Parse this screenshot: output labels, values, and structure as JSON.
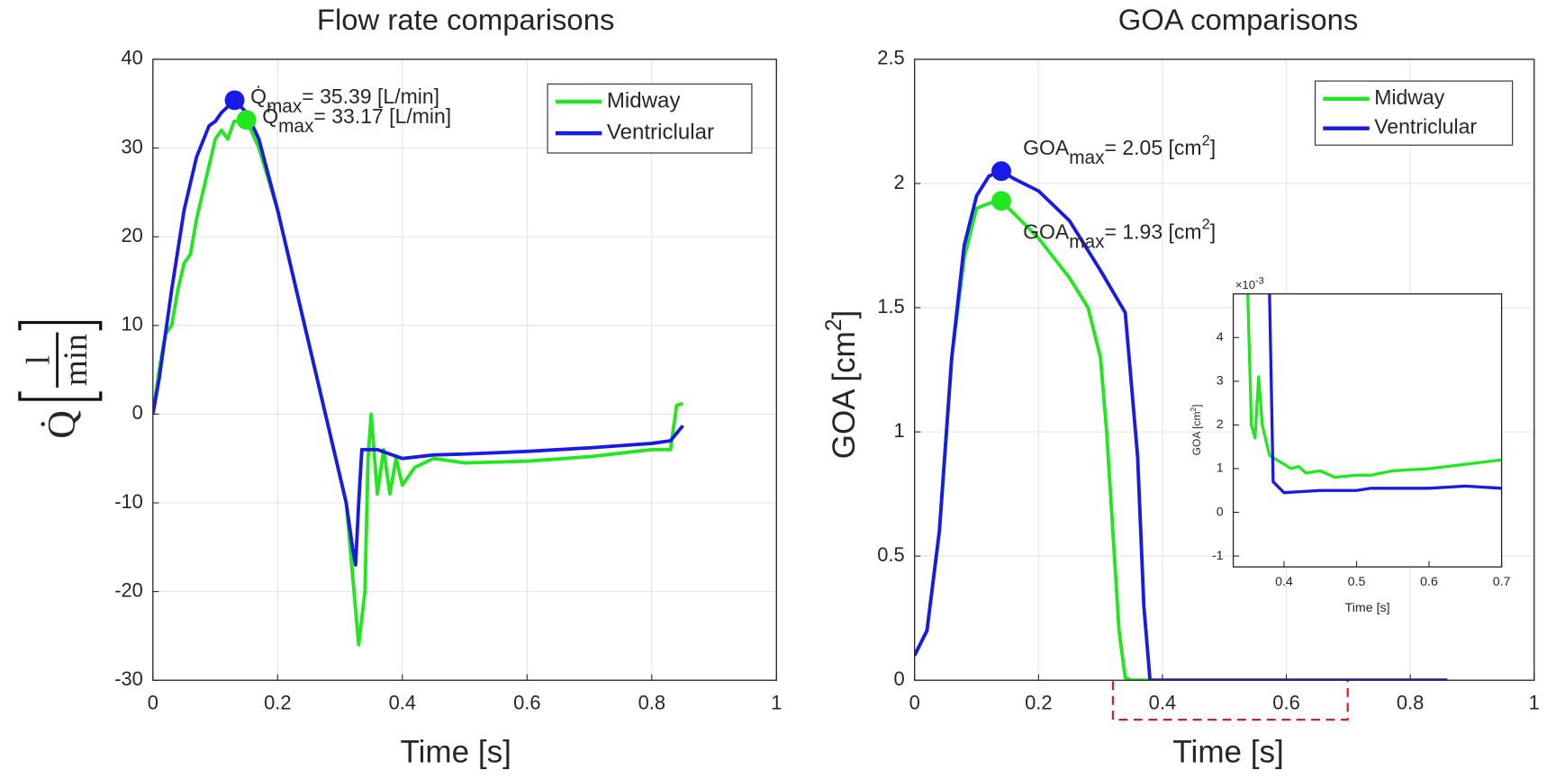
{
  "chart_data": [
    {
      "type": "line",
      "title": "Flow rate comparisons",
      "xlabel": "Time [s]",
      "ylabel": {
        "symbol": "Q̇",
        "numerator": "l",
        "denominator": "min"
      },
      "xlim": [
        0,
        1
      ],
      "xticks": [
        0,
        0.2,
        0.4,
        0.6,
        0.8,
        1
      ],
      "ylim": [
        -30,
        40
      ],
      "yticks": [
        -30,
        -20,
        -10,
        0,
        10,
        20,
        30,
        40
      ],
      "grid": true,
      "legend": "northeast",
      "series": [
        {
          "name": "Midway",
          "color": "#22e61e",
          "x": [
            0,
            0.01,
            0.02,
            0.03,
            0.04,
            0.05,
            0.06,
            0.07,
            0.08,
            0.09,
            0.1,
            0.11,
            0.12,
            0.13,
            0.15,
            0.17,
            0.2,
            0.23,
            0.26,
            0.29,
            0.31,
            0.32,
            0.33,
            0.34,
            0.345,
            0.35,
            0.36,
            0.37,
            0.38,
            0.39,
            0.4,
            0.42,
            0.45,
            0.5,
            0.6,
            0.7,
            0.8,
            0.83,
            0.84,
            0.85
          ],
          "values": [
            0,
            5,
            9,
            10,
            14,
            17,
            18,
            22,
            25,
            28,
            31,
            32,
            31,
            33,
            33.17,
            30,
            23,
            14,
            5,
            -4,
            -10,
            -18,
            -26,
            -20,
            -5,
            0,
            -9,
            -4,
            -9,
            -5,
            -8,
            -6,
            -5,
            -5.5,
            -5.3,
            -4.8,
            -4,
            -4,
            1,
            1.2
          ]
        },
        {
          "name": "Ventriclular",
          "color": "#1a1ae6",
          "x": [
            0,
            0.01,
            0.02,
            0.03,
            0.05,
            0.07,
            0.09,
            0.1,
            0.11,
            0.131,
            0.15,
            0.17,
            0.2,
            0.23,
            0.26,
            0.29,
            0.31,
            0.32,
            0.325,
            0.33,
            0.335,
            0.34,
            0.36,
            0.4,
            0.45,
            0.5,
            0.6,
            0.7,
            0.8,
            0.83,
            0.85
          ],
          "values": [
            0,
            4,
            9,
            14,
            23,
            29,
            32.5,
            33,
            34,
            35.39,
            34,
            31,
            23,
            14,
            5,
            -4,
            -10,
            -15,
            -17,
            -10,
            -4,
            -4,
            -4,
            -5,
            -4.6,
            -4.5,
            -4.2,
            -3.8,
            -3.3,
            -3,
            -1.3
          ]
        }
      ],
      "annotations": [
        {
          "symbol": "Q̇",
          "subscript": "max",
          "text": "= 35.39 [L/min]",
          "x": 0.131,
          "y": 35.39,
          "color": "#1a1ae6"
        },
        {
          "symbol": "Q̇",
          "subscript": "max",
          "text": "= 33.17 [L/min]",
          "x": 0.15,
          "y": 33.17,
          "color": "#22e61e"
        }
      ]
    },
    {
      "type": "line",
      "title": "GOA comparisons",
      "xlabel": "Time [s]",
      "ylabel": {
        "text": "GOA [cm",
        "superscript": "2",
        "text_end": "]"
      },
      "xlim": [
        0,
        1
      ],
      "xticks": [
        0,
        0.2,
        0.4,
        0.6,
        0.8,
        1
      ],
      "ylim": [
        0,
        2.5
      ],
      "yticks": [
        0,
        0.5,
        1,
        1.5,
        2,
        2.5
      ],
      "grid": true,
      "legend": "northeast",
      "series": [
        {
          "name": "Midway",
          "color": "#22e61e",
          "x": [
            0,
            0.02,
            0.04,
            0.06,
            0.08,
            0.1,
            0.12,
            0.14,
            0.16,
            0.2,
            0.25,
            0.28,
            0.3,
            0.31,
            0.32,
            0.33,
            0.34,
            0.35,
            0.38
          ],
          "values": [
            0.1,
            0.2,
            0.6,
            1.3,
            1.7,
            1.9,
            1.92,
            1.93,
            1.88,
            1.78,
            1.62,
            1.5,
            1.3,
            1.0,
            0.6,
            0.2,
            0.01,
            0,
            0
          ]
        },
        {
          "name": "Ventriclular",
          "color": "#1a1ae6",
          "x": [
            0,
            0.02,
            0.04,
            0.06,
            0.08,
            0.1,
            0.12,
            0.14,
            0.16,
            0.2,
            0.25,
            0.3,
            0.34,
            0.36,
            0.37,
            0.38,
            0.86
          ],
          "values": [
            0.1,
            0.2,
            0.6,
            1.3,
            1.75,
            1.95,
            2.03,
            2.05,
            2.02,
            1.97,
            1.85,
            1.65,
            1.48,
            0.9,
            0.3,
            0,
            0
          ]
        }
      ],
      "annotations": [
        {
          "symbol": "GOA",
          "subscript": "max",
          "text": "=  2.05 [cm",
          "superscript": "2",
          "text_end": "]",
          "x": 0.14,
          "y": 2.05,
          "color": "#1a1ae6"
        },
        {
          "symbol": "GOA",
          "subscript": "max",
          "text": "=  1.93 [cm",
          "superscript": "2",
          "text_end": "]",
          "x": 0.14,
          "y": 1.93,
          "color": "#22e61e"
        }
      ]
    },
    {
      "type": "line",
      "xlabel": "Time [s]",
      "ylabel": {
        "text": "GOA [cm",
        "superscript": "2",
        "text_end": "]"
      },
      "y_multiplier": {
        "text": "×10",
        "superscript": "-3"
      },
      "xlim": [
        0.33,
        0.7
      ],
      "xticks": [
        0.4,
        0.5,
        0.6,
        0.7
      ],
      "ylim": [
        -1.25,
        5
      ],
      "yticks": [
        -1,
        0,
        1,
        2,
        3,
        4
      ],
      "grid": false,
      "series": [
        {
          "name": "Midway",
          "color": "#22e61e",
          "x": [
            0.35,
            0.355,
            0.36,
            0.365,
            0.37,
            0.38,
            0.4,
            0.41,
            0.42,
            0.43,
            0.45,
            0.47,
            0.5,
            0.52,
            0.55,
            0.6,
            0.65,
            0.7
          ],
          "values": [
            5,
            2,
            1.7,
            3.1,
            2,
            1.3,
            1.1,
            1.0,
            1.05,
            0.9,
            0.95,
            0.8,
            0.85,
            0.85,
            0.95,
            1.0,
            1.1,
            1.2
          ]
        },
        {
          "name": "Ventriclular",
          "color": "#1a1ae6",
          "x": [
            0.38,
            0.385,
            0.4,
            0.45,
            0.5,
            0.52,
            0.55,
            0.6,
            0.65,
            0.7
          ],
          "values": [
            5,
            0.7,
            0.45,
            0.5,
            0.5,
            0.55,
            0.55,
            0.55,
            0.6,
            0.55
          ]
        }
      ]
    }
  ]
}
